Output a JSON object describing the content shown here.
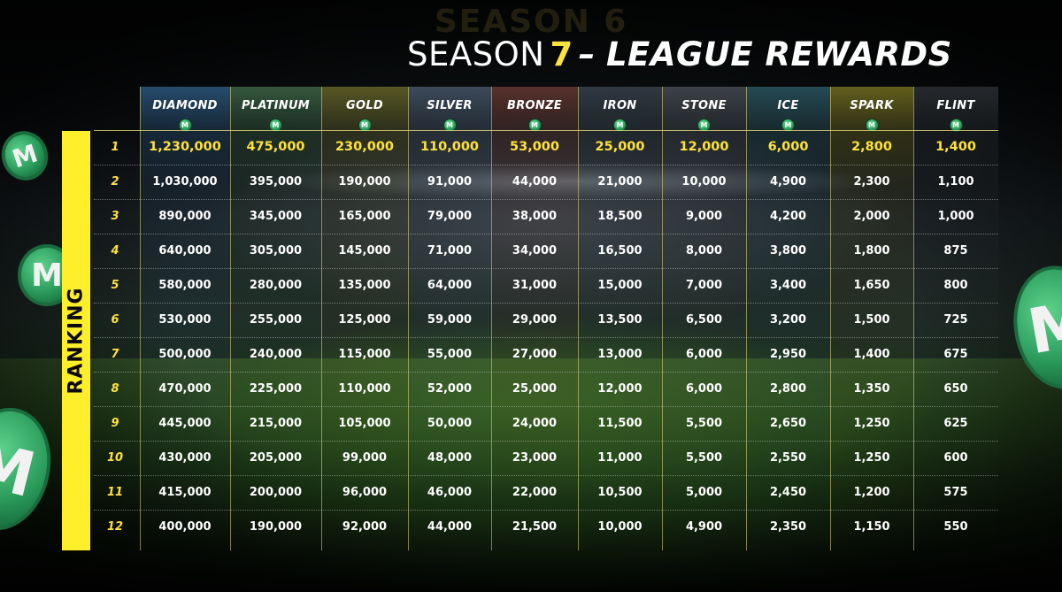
{
  "header": {
    "ghost_title": "SEASON 6",
    "title_prefix": "SEASON",
    "title_number": "7",
    "title_dash": "–",
    "title_rest": "LEAGUE REWARDS"
  },
  "coin_symbol": "M",
  "ranking_label": "RANKING",
  "colors": {
    "accent_yellow": "#ffee2a",
    "coin_green": "#2a9a5a"
  },
  "leagues": [
    {
      "name": "DIAMOND",
      "tint": "#2f5d86"
    },
    {
      "name": "PLATINUM",
      "tint": "#3f6a48"
    },
    {
      "name": "GOLD",
      "tint": "#6a6a2a"
    },
    {
      "name": "SILVER",
      "tint": "#4a5a6e"
    },
    {
      "name": "BRONZE",
      "tint": "#6b3b34"
    },
    {
      "name": "IRON",
      "tint": "#3a4550"
    },
    {
      "name": "STONE",
      "tint": "#4a5058"
    },
    {
      "name": "ICE",
      "tint": "#2e5b66"
    },
    {
      "name": "SPARK",
      "tint": "#7a7422"
    },
    {
      "name": "FLINT",
      "tint": "#2e3236"
    }
  ],
  "rows": [
    {
      "rank": "1",
      "values": [
        "1,230,000",
        "475,000",
        "230,000",
        "110,000",
        "53,000",
        "25,000",
        "12,000",
        "6,000",
        "2,800",
        "1,400"
      ]
    },
    {
      "rank": "2",
      "values": [
        "1,030,000",
        "395,000",
        "190,000",
        "91,000",
        "44,000",
        "21,000",
        "10,000",
        "4,900",
        "2,300",
        "1,100"
      ]
    },
    {
      "rank": "3",
      "values": [
        "890,000",
        "345,000",
        "165,000",
        "79,000",
        "38,000",
        "18,500",
        "9,000",
        "4,200",
        "2,000",
        "1,000"
      ]
    },
    {
      "rank": "4",
      "values": [
        "640,000",
        "305,000",
        "145,000",
        "71,000",
        "34,000",
        "16,500",
        "8,000",
        "3,800",
        "1,800",
        "875"
      ]
    },
    {
      "rank": "5",
      "values": [
        "580,000",
        "280,000",
        "135,000",
        "64,000",
        "31,000",
        "15,000",
        "7,000",
        "3,400",
        "1,650",
        "800"
      ]
    },
    {
      "rank": "6",
      "values": [
        "530,000",
        "255,000",
        "125,000",
        "59,000",
        "29,000",
        "13,500",
        "6,500",
        "3,200",
        "1,500",
        "725"
      ]
    },
    {
      "rank": "7",
      "values": [
        "500,000",
        "240,000",
        "115,000",
        "55,000",
        "27,000",
        "13,000",
        "6,000",
        "2,950",
        "1,400",
        "675"
      ]
    },
    {
      "rank": "8",
      "values": [
        "470,000",
        "225,000",
        "110,000",
        "52,000",
        "25,000",
        "12,000",
        "6,000",
        "2,800",
        "1,350",
        "650"
      ]
    },
    {
      "rank": "9",
      "values": [
        "445,000",
        "215,000",
        "105,000",
        "50,000",
        "24,000",
        "11,500",
        "5,500",
        "2,650",
        "1,250",
        "625"
      ]
    },
    {
      "rank": "10",
      "values": [
        "430,000",
        "205,000",
        "99,000",
        "48,000",
        "23,000",
        "11,000",
        "5,500",
        "2,550",
        "1,250",
        "600"
      ]
    },
    {
      "rank": "11",
      "values": [
        "415,000",
        "200,000",
        "96,000",
        "46,000",
        "22,000",
        "10,500",
        "5,000",
        "2,450",
        "1,200",
        "575"
      ]
    },
    {
      "rank": "12",
      "values": [
        "400,000",
        "190,000",
        "92,000",
        "44,000",
        "21,500",
        "10,000",
        "4,900",
        "2,350",
        "1,150",
        "550"
      ]
    }
  ]
}
